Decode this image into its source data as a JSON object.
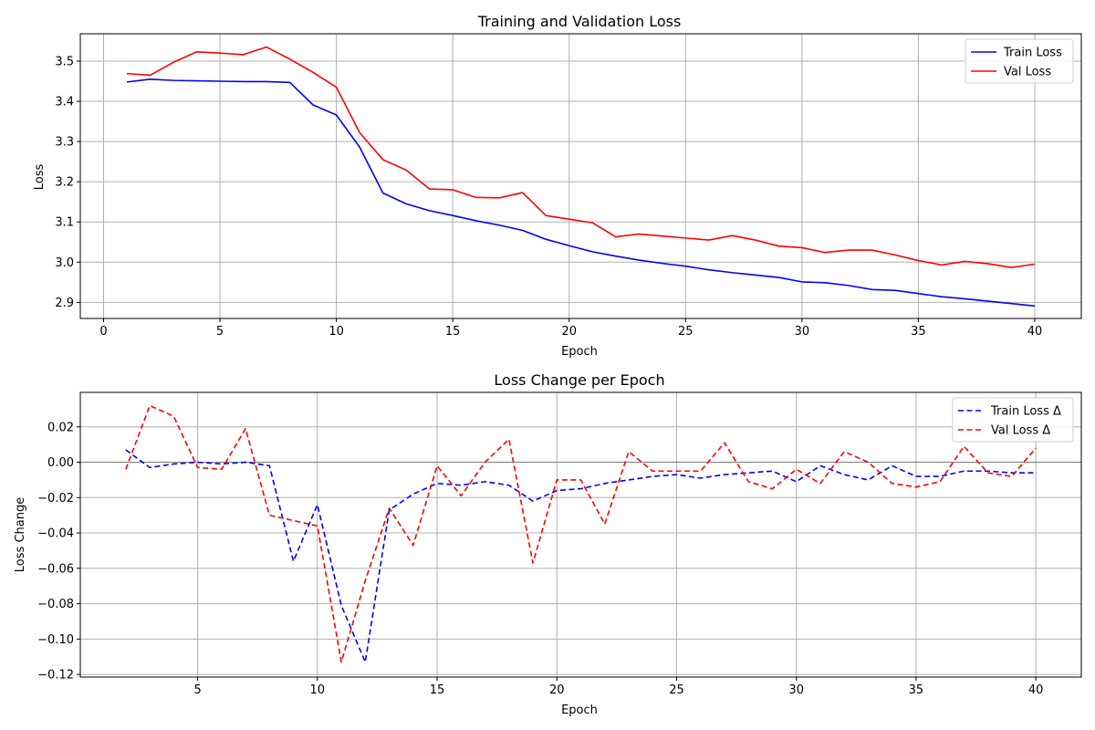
{
  "chart_data": [
    {
      "type": "line",
      "title": "Training and Validation Loss",
      "xlabel": "Epoch",
      "ylabel": "Loss",
      "xlim": [
        -1,
        42
      ],
      "ylim": [
        2.86,
        3.568
      ],
      "xticks": [
        0,
        5,
        10,
        15,
        20,
        25,
        30,
        35,
        40
      ],
      "yticks": [
        2.9,
        3.0,
        3.1,
        3.2,
        3.3,
        3.4,
        3.5
      ],
      "ytick_labels": [
        "2.9",
        "3.0",
        "3.1",
        "3.2",
        "3.3",
        "3.4",
        "3.5"
      ],
      "grid": true,
      "legend_position": "top-right",
      "x": [
        1,
        2,
        3,
        4,
        5,
        6,
        7,
        8,
        9,
        10,
        11,
        12,
        13,
        14,
        15,
        16,
        17,
        18,
        19,
        20,
        21,
        22,
        23,
        24,
        25,
        26,
        27,
        28,
        29,
        30,
        31,
        32,
        33,
        34,
        35,
        36,
        37,
        38,
        39,
        40
      ],
      "series": [
        {
          "name": "Train Loss",
          "color": "#0000ff",
          "dash": "solid",
          "values": [
            3.448,
            3.455,
            3.452,
            3.451,
            3.45,
            3.449,
            3.449,
            3.447,
            3.391,
            3.366,
            3.286,
            3.172,
            3.145,
            3.128,
            3.116,
            3.103,
            3.092,
            3.079,
            3.057,
            3.041,
            3.026,
            3.015,
            3.005,
            2.997,
            2.99,
            2.981,
            2.974,
            2.968,
            2.962,
            2.951,
            2.949,
            2.942,
            2.932,
            2.93,
            2.922,
            2.914,
            2.909,
            2.903,
            2.897,
            2.891
          ]
        },
        {
          "name": "Val Loss",
          "color": "#ff0000",
          "dash": "solid",
          "values": [
            3.469,
            3.465,
            3.497,
            3.523,
            3.52,
            3.516,
            3.535,
            3.505,
            3.472,
            3.435,
            3.322,
            3.255,
            3.229,
            3.182,
            3.18,
            3.161,
            3.16,
            3.173,
            3.116,
            3.107,
            3.098,
            3.063,
            3.07,
            3.065,
            3.06,
            3.055,
            3.066,
            3.055,
            3.04,
            3.036,
            3.024,
            3.03,
            3.03,
            3.018,
            3.004,
            2.993,
            3.002,
            2.996,
            2.987,
            2.995
          ]
        }
      ]
    },
    {
      "type": "line",
      "title": "Loss Change per Epoch",
      "xlabel": "Epoch",
      "ylabel": "Loss Change",
      "xlim": [
        0.1,
        41.9
      ],
      "ylim": [
        -0.1215,
        0.0395
      ],
      "xticks": [
        5,
        10,
        15,
        20,
        25,
        30,
        35,
        40
      ],
      "yticks": [
        0.02,
        0.0,
        -0.02,
        -0.04,
        -0.06,
        -0.08,
        -0.1,
        -0.12
      ],
      "ytick_labels": [
        "0.02",
        "0.00",
        "−0.02",
        "−0.04",
        "−0.06",
        "−0.08",
        "−0.10",
        "−0.12"
      ],
      "grid": true,
      "zero_line": true,
      "legend_position": "top-right",
      "x": [
        2,
        3,
        4,
        5,
        6,
        7,
        8,
        9,
        10,
        11,
        12,
        13,
        14,
        15,
        16,
        17,
        18,
        19,
        20,
        21,
        22,
        23,
        24,
        25,
        26,
        27,
        28,
        29,
        30,
        31,
        32,
        33,
        34,
        35,
        36,
        37,
        38,
        39,
        40
      ],
      "series": [
        {
          "name": "Train Loss Δ",
          "color": "#0000ff",
          "dash": "dashed",
          "values": [
            0.007,
            -0.003,
            -0.001,
            0.0,
            -0.001,
            0.0,
            -0.002,
            -0.056,
            -0.024,
            -0.081,
            -0.113,
            -0.027,
            -0.018,
            -0.012,
            -0.013,
            -0.011,
            -0.013,
            -0.022,
            -0.016,
            -0.015,
            -0.012,
            -0.01,
            -0.008,
            -0.007,
            -0.009,
            -0.007,
            -0.006,
            -0.005,
            -0.011,
            -0.002,
            -0.007,
            -0.01,
            -0.002,
            -0.008,
            -0.008,
            -0.005,
            -0.005,
            -0.006,
            -0.006
          ]
        },
        {
          "name": "Val Loss Δ",
          "color": "#ff0000",
          "dash": "dashed",
          "values": [
            -0.004,
            0.032,
            0.026,
            -0.003,
            -0.004,
            0.019,
            -0.03,
            -0.033,
            -0.036,
            -0.113,
            -0.067,
            -0.026,
            -0.047,
            -0.002,
            -0.019,
            0.0,
            0.013,
            -0.057,
            -0.01,
            -0.01,
            -0.035,
            0.006,
            -0.005,
            -0.005,
            -0.005,
            0.011,
            -0.011,
            -0.015,
            -0.004,
            -0.012,
            0.006,
            0.0,
            -0.012,
            -0.014,
            -0.011,
            0.009,
            -0.006,
            -0.008,
            0.008
          ]
        }
      ]
    }
  ]
}
